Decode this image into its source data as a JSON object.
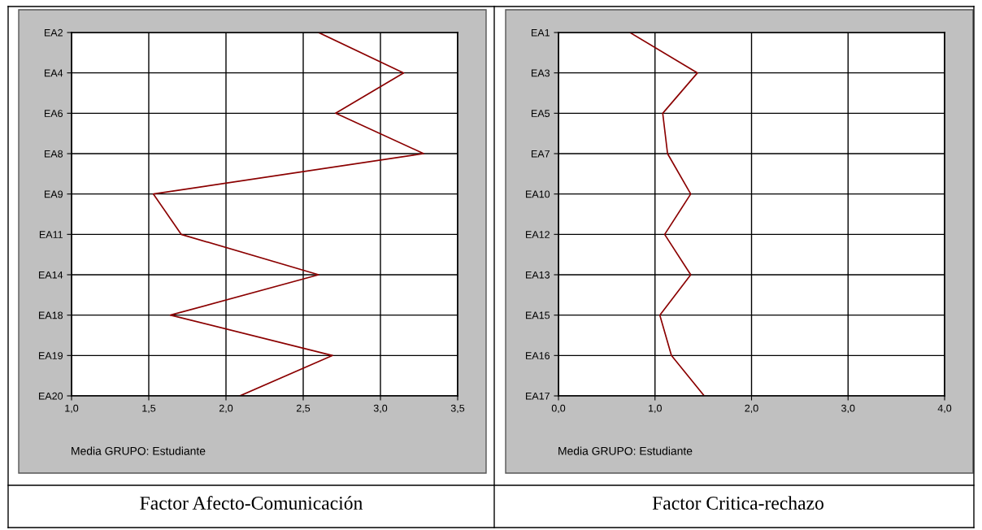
{
  "chart_data": [
    {
      "type": "line",
      "orientation": "horizontal",
      "title": "Factor Afecto-Comunicación",
      "annotations": [
        "Media GRUPO: Estudiante"
      ],
      "categories": [
        "EA2",
        "EA4",
        "EA6",
        "EA8",
        "EA9",
        "EA11",
        "EA14",
        "EA18",
        "EA19",
        "EA20"
      ],
      "series": [
        {
          "color": "#8b0000",
          "values": [
            2.6,
            3.15,
            2.71,
            3.28,
            1.53,
            1.71,
            2.6,
            1.64,
            2.69,
            2.09
          ]
        }
      ],
      "xlim": [
        1.0,
        3.5
      ],
      "xticks": [
        {
          "value": 1.0,
          "label": "1,0"
        },
        {
          "value": 1.5,
          "label": "1,5"
        },
        {
          "value": 2.0,
          "label": "2,0"
        },
        {
          "value": 2.5,
          "label": "2,5"
        },
        {
          "value": 3.0,
          "label": "3,0"
        },
        {
          "value": 3.5,
          "label": "3,5"
        }
      ],
      "grid": true,
      "legend": false,
      "marker": "none",
      "line_style": "solid"
    },
    {
      "type": "line",
      "orientation": "horizontal",
      "title": "Factor Critica-rechazo",
      "annotations": [
        "Media GRUPO: Estudiante"
      ],
      "categories": [
        "EA1",
        "EA3",
        "EA5",
        "EA7",
        "EA10",
        "EA12",
        "EA13",
        "EA15",
        "EA16",
        "EA17"
      ],
      "series": [
        {
          "color": "#8b0000",
          "values": [
            0.74,
            1.44,
            1.08,
            1.13,
            1.37,
            1.1,
            1.37,
            1.05,
            1.17,
            1.51
          ]
        }
      ],
      "xlim": [
        0.0,
        4.0
      ],
      "xticks": [
        {
          "value": 0.0,
          "label": "0,0"
        },
        {
          "value": 1.0,
          "label": "1,0"
        },
        {
          "value": 2.0,
          "label": "2,0"
        },
        {
          "value": 3.0,
          "label": "3,0"
        },
        {
          "value": 4.0,
          "label": "4,0"
        }
      ],
      "grid": true,
      "legend": false,
      "marker": "none",
      "line_style": "solid"
    }
  ]
}
